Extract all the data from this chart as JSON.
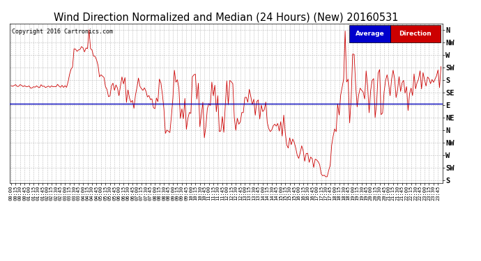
{
  "title": "Wind Direction Normalized and Median (24 Hours) (New) 20160531",
  "copyright": "Copyright 2016 Cartronics.com",
  "ytick_labels": [
    "N",
    "NW",
    "W",
    "SW",
    "S",
    "SE",
    "E",
    "NE",
    "N",
    "NW",
    "W",
    "SW",
    "S"
  ],
  "ytick_values": [
    12,
    11,
    10,
    9,
    8,
    7,
    6,
    5,
    4,
    3,
    2,
    1,
    0
  ],
  "avg_line_y": 6.1,
  "line_color": "#cc0000",
  "avg_line_color": "#0000bb",
  "background_color": "#ffffff",
  "grid_color": "#aaaaaa",
  "title_fontsize": 10.5,
  "legend_blue": "#0000cc",
  "legend_red": "#cc0000",
  "ylim_min": -0.2,
  "ylim_max": 12.5
}
